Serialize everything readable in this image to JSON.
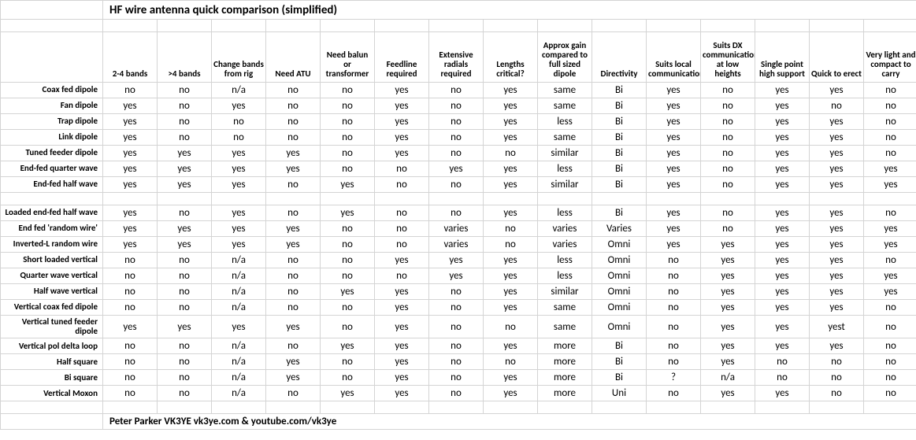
{
  "title": "HF wire antenna quick comparison (simplified)",
  "credit": "Peter Parker VK3YE  vk3ye.com & youtube.com/vk3ye",
  "columns": [
    "2-4 bands",
    ">4 bands",
    "Change bands from rig",
    "Need ATU",
    "Need balun or transformer",
    "Feedline required",
    "Extensive radials required",
    "Lengths critical?",
    "Approx gain compared to full sized dipole",
    "Directivity",
    "Suits local communications",
    "Suits DX communications at low heights",
    "Single point high support",
    "Quick to erect",
    "Very light and compact to carry"
  ],
  "rows": [
    {
      "label": "Coax fed dipole",
      "cells": [
        "no",
        "no",
        "n/a",
        "no",
        "no",
        "yes",
        "no",
        "yes",
        "same",
        "Bi",
        "yes",
        "no",
        "yes",
        "yes",
        "no"
      ]
    },
    {
      "label": "Fan dipole",
      "cells": [
        "yes",
        "no",
        "yes",
        "no",
        "no",
        "yes",
        "no",
        "yes",
        "same",
        "Bi",
        "yes",
        "no",
        "yes",
        "no",
        "no"
      ]
    },
    {
      "label": "Trap dipole",
      "cells": [
        "yes",
        "no",
        "no",
        "no",
        "no",
        "yes",
        "no",
        "yes",
        "less",
        "Bi",
        "yes",
        "no",
        "yes",
        "yes",
        "no"
      ]
    },
    {
      "label": "Link dipole",
      "cells": [
        "yes",
        "no",
        "no",
        "no",
        "no",
        "yes",
        "no",
        "yes",
        "same",
        "Bi",
        "yes",
        "no",
        "yes",
        "yes",
        "no"
      ]
    },
    {
      "label": "Tuned feeder dipole",
      "cells": [
        "yes",
        "yes",
        "yes",
        "yes",
        "no",
        "yes",
        "no",
        "no",
        "similar",
        "Bi",
        "yes",
        "no",
        "yes",
        "yes",
        "no"
      ]
    },
    {
      "label": "End-fed quarter wave",
      "cells": [
        "yes",
        "yes",
        "yes",
        "yes",
        "no",
        "no",
        "yes",
        "yes",
        "less",
        "Bi",
        "yes",
        "no",
        "yes",
        "yes",
        "yes"
      ]
    },
    {
      "label": "End-fed half wave",
      "cells": [
        "yes",
        "yes",
        "yes",
        "no",
        "yes",
        "no",
        "no",
        "yes",
        "similar",
        "Bi",
        "yes",
        "no",
        "yes",
        "yes",
        "yes"
      ]
    }
  ],
  "rows2": [
    {
      "label": "Loaded end-fed half wave",
      "cells": [
        "yes",
        "no",
        "yes",
        "no",
        "yes",
        "no",
        "no",
        "yes",
        "less",
        "Bi",
        "yes",
        "no",
        "yes",
        "yes",
        "no"
      ]
    },
    {
      "label": "End fed 'random wire'",
      "cells": [
        "yes",
        "yes",
        "yes",
        "yes",
        "no",
        "no",
        "varies",
        "no",
        "varies",
        "Varies",
        "yes",
        "no",
        "yes",
        "yes",
        "yes"
      ]
    },
    {
      "label": "Inverted-L random wire",
      "cells": [
        "yes",
        "yes",
        "yes",
        "yes",
        "no",
        "no",
        "varies",
        "no",
        "varies",
        "Omni",
        "yes",
        "yes",
        "yes",
        "yes",
        "yes"
      ]
    },
    {
      "label": "Short loaded vertical",
      "cells": [
        "no",
        "no",
        "n/a",
        "no",
        "no",
        "yes",
        "yes",
        "yes",
        "less",
        "Omni",
        "no",
        "yes",
        "yes",
        "yes",
        "no"
      ]
    },
    {
      "label": "Quarter wave vertical",
      "cells": [
        "no",
        "no",
        "n/a",
        "no",
        "no",
        "no",
        "yes",
        "yes",
        "less",
        "Omni",
        "no",
        "yes",
        "yes",
        "yes",
        "yes"
      ]
    },
    {
      "label": "Half wave vertical",
      "cells": [
        "no",
        "no",
        "n/a",
        "no",
        "yes",
        "yes",
        "no",
        "yes",
        "similar",
        "Omni",
        "no",
        "yes",
        "yes",
        "yes",
        "yes"
      ]
    },
    {
      "label": "Vertical coax fed dipole",
      "cells": [
        "no",
        "no",
        "n/a",
        "no",
        "no",
        "yes",
        "no",
        "yes",
        "same",
        "Omni",
        "no",
        "yes",
        "yes",
        "yes",
        "no"
      ]
    },
    {
      "label": "Vertical tuned feeder dipole",
      "cells": [
        "yes",
        "yes",
        "yes",
        "yes",
        "no",
        "yes",
        "no",
        "no",
        "same",
        "Omni",
        "no",
        "yes",
        "yes",
        "yest",
        "no"
      ]
    },
    {
      "label": "Vertical pol delta loop",
      "cells": [
        "no",
        "no",
        "n/a",
        "no",
        "yes",
        "yes",
        "no",
        "yes",
        "more",
        "Bi",
        "no",
        "yes",
        "yes",
        "yes",
        "no"
      ]
    },
    {
      "label": "Half square",
      "cells": [
        "no",
        "no",
        "n/a",
        "yes",
        "no",
        "yes",
        "no",
        "no",
        "more",
        "Bi",
        "no",
        "yes",
        "no",
        "no",
        "no"
      ]
    },
    {
      "label": "Bi square",
      "cells": [
        "no",
        "no",
        "n/a",
        "yes",
        "no",
        "yes",
        "no",
        "yes",
        "more",
        "Bi",
        "?",
        "n/a",
        "no",
        "no",
        "no"
      ]
    },
    {
      "label": "Vertical Moxon",
      "cells": [
        "no",
        "no",
        "n/a",
        "no",
        "yes",
        "yes",
        "no",
        "yes",
        "more",
        "Uni",
        "no",
        "yes",
        "yes",
        "no",
        "no"
      ]
    }
  ],
  "colors": {
    "background": "#ffffff",
    "border": "#d4d4d4",
    "text": "#000000"
  },
  "font": {
    "family": "Calibri, Arial, sans-serif",
    "title_size": 15,
    "header_size": 11,
    "data_size": 13,
    "label_size": 11
  }
}
